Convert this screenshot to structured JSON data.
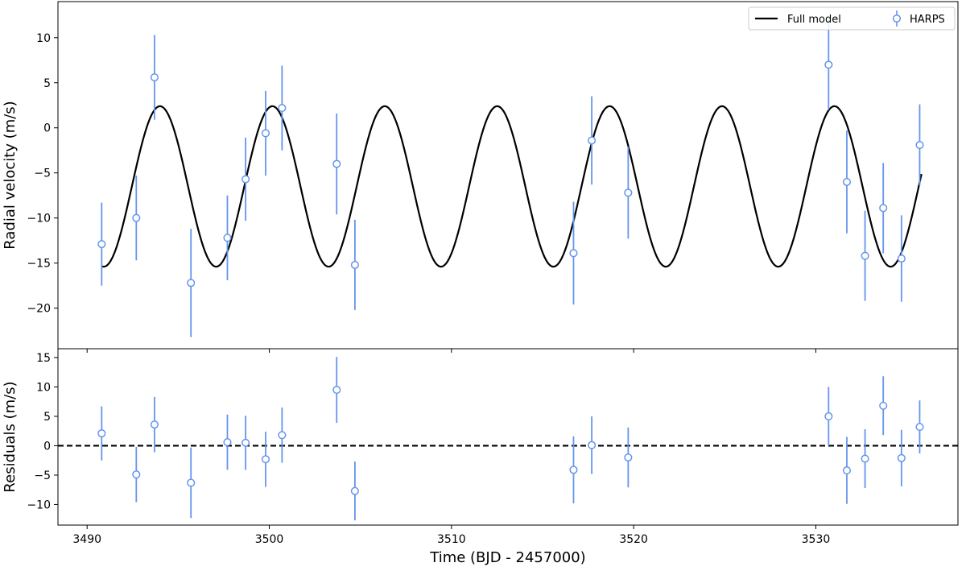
{
  "chart_data": [
    {
      "type": "line",
      "panel": "top",
      "ylabel": "Radial velocity (m/s)",
      "xlim": [
        3488.4,
        3537.8
      ],
      "ylim": [
        -24.5,
        14
      ],
      "yticks": [
        10,
        5,
        0,
        -5,
        -10,
        -15,
        -20
      ],
      "grid": false,
      "legend": {
        "placement": "top-right",
        "entries": [
          {
            "label": "Full model",
            "style": "line",
            "color": "#000000"
          },
          {
            "label": "HARPS",
            "style": "errorbar-marker",
            "color": "#6495ed"
          }
        ]
      },
      "model": {
        "name": "Full model",
        "color": "#000000",
        "x_range": [
          3490.8,
          3535.8
        ],
        "offset": -6.5,
        "amplitude": 8.9,
        "period": 6.17,
        "peak_time": 3494.0
      },
      "series": [
        {
          "name": "HARPS",
          "color": "#6495ed",
          "x": [
            3490.8,
            3492.7,
            3493.7,
            3495.7,
            3497.7,
            3498.7,
            3499.8,
            3500.7,
            3503.7,
            3504.7,
            3516.7,
            3517.7,
            3519.7,
            3530.7,
            3531.7,
            3532.7,
            3533.7,
            3534.7,
            3535.7
          ],
          "y": [
            -12.9,
            -10.0,
            5.6,
            -17.2,
            -12.2,
            -5.7,
            -0.6,
            2.2,
            -4.0,
            -15.2,
            -13.9,
            -1.4,
            -7.2,
            7.0,
            -6.0,
            -14.2,
            -8.9,
            -14.5,
            -1.9
          ],
          "yerr": [
            4.6,
            4.7,
            4.7,
            6.0,
            4.7,
            4.6,
            4.7,
            4.7,
            5.6,
            5.0,
            5.7,
            4.9,
            5.1,
            5.0,
            5.7,
            5.0,
            5.0,
            4.8,
            4.5
          ]
        }
      ]
    },
    {
      "type": "scatter",
      "panel": "bottom",
      "xlabel": "Time (BJD - 2457000)",
      "ylabel": "Residuals (m/s)",
      "xlim": [
        3488.4,
        3537.8
      ],
      "ylim": [
        -13.5,
        16.5
      ],
      "xticks": [
        3490,
        3500,
        3510,
        3520,
        3530
      ],
      "yticks": [
        15,
        10,
        5,
        0,
        -5,
        -10
      ],
      "zero_line": {
        "y": 0,
        "style": "dashed",
        "color": "#000000"
      },
      "series": [
        {
          "name": "HARPS",
          "color": "#6495ed",
          "x": [
            3490.8,
            3492.7,
            3493.7,
            3495.7,
            3497.7,
            3498.7,
            3499.8,
            3500.7,
            3503.7,
            3504.7,
            3516.7,
            3517.7,
            3519.7,
            3530.7,
            3531.7,
            3532.7,
            3533.7,
            3534.7,
            3535.7
          ],
          "y": [
            2.1,
            -4.9,
            3.6,
            -6.3,
            0.6,
            0.5,
            -2.3,
            1.8,
            9.5,
            -7.7,
            -4.1,
            0.1,
            -2.0,
            5.0,
            -4.2,
            -2.2,
            6.8,
            -2.1,
            3.2
          ],
          "yerr": [
            4.6,
            4.7,
            4.7,
            6.0,
            4.7,
            4.6,
            4.7,
            4.7,
            5.6,
            5.0,
            5.7,
            4.9,
            5.1,
            5.0,
            5.7,
            5.0,
            5.0,
            4.8,
            4.5
          ]
        }
      ]
    }
  ]
}
